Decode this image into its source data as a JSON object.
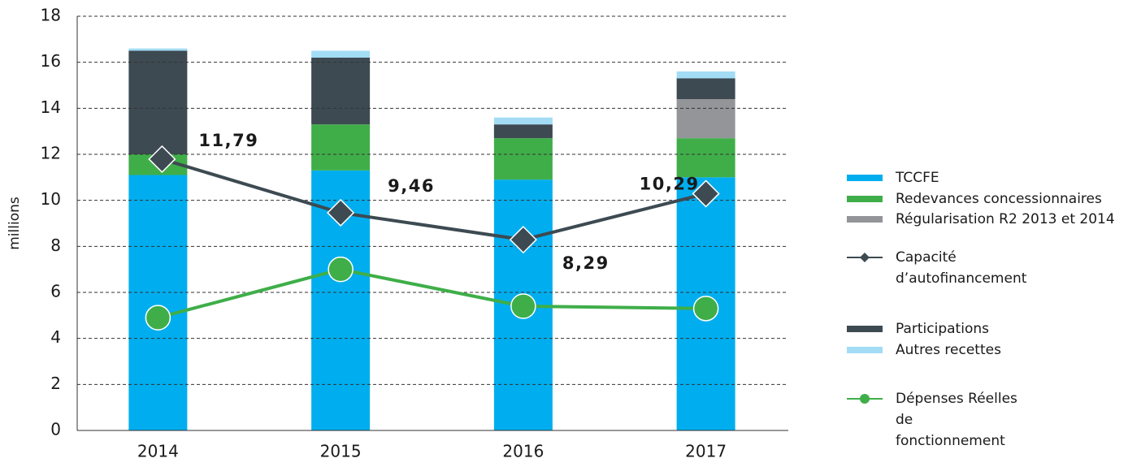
{
  "chart_data": {
    "type": "bar",
    "y_label": "millions",
    "categories": [
      "2014",
      "2015",
      "2016",
      "2017"
    ],
    "series": [
      {
        "name": "TCCFE",
        "type": "bar",
        "color": "#00aeef",
        "values": [
          11.1,
          11.3,
          10.9,
          11.0
        ]
      },
      {
        "name": "Redevances concessionnaires",
        "type": "bar",
        "color": "#3fae49",
        "values": [
          0.9,
          2.0,
          1.8,
          1.7
        ]
      },
      {
        "name": "Régularisation R2 2013 et 2014",
        "type": "bar",
        "color": "#939598",
        "values": [
          0,
          0,
          0,
          1.7
        ]
      },
      {
        "name": "Capacité d’autofinancement",
        "type": "line",
        "marker": "diamond",
        "color": "#3d4a52",
        "values": [
          11.79,
          9.46,
          8.29,
          10.29
        ],
        "value_labels": [
          "11,79",
          "9,46",
          "8,29",
          "10,29"
        ]
      },
      {
        "name": "Participations",
        "type": "bar",
        "color": "#3d4a52",
        "values": [
          4.5,
          2.9,
          0.6,
          0.9
        ]
      },
      {
        "name": "Autres recettes",
        "type": "bar",
        "color": "#a3dcf5",
        "values": [
          0.1,
          0.3,
          0.3,
          0.3
        ]
      },
      {
        "name": "Dépenses Réelles de fonctionnement",
        "type": "line",
        "marker": "circle",
        "color": "#3fae49",
        "values": [
          4.9,
          7.0,
          5.4,
          5.3
        ]
      }
    ],
    "ylim": [
      0,
      18
    ],
    "yticks": [
      0,
      2,
      4,
      6,
      8,
      10,
      12,
      14,
      16,
      18
    ],
    "grid": true
  }
}
